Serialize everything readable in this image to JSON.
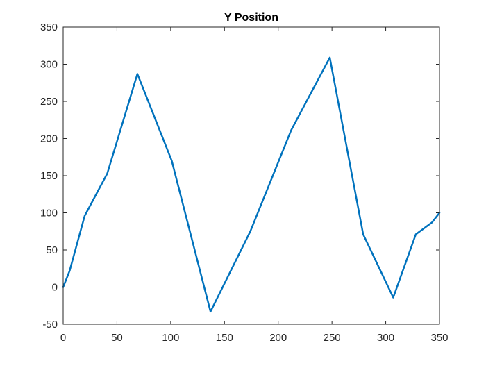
{
  "chart_data": {
    "type": "line",
    "title": "Y Position",
    "xlabel": "",
    "ylabel": "",
    "xlim": [
      0,
      350
    ],
    "ylim": [
      -50,
      350
    ],
    "xticks": [
      0,
      50,
      100,
      150,
      200,
      250,
      300,
      350
    ],
    "yticks": [
      -50,
      0,
      50,
      100,
      150,
      200,
      250,
      300,
      350
    ],
    "grid": false,
    "series": [
      {
        "color": "#0072BD",
        "x": [
          0,
          6,
          20,
          41,
          69,
          101,
          137,
          174,
          212,
          248,
          279,
          307,
          328,
          343,
          350
        ],
        "y": [
          0,
          22,
          96,
          153,
          287,
          170,
          -33,
          75,
          211,
          309,
          71,
          -14,
          71,
          87,
          100
        ]
      }
    ]
  }
}
